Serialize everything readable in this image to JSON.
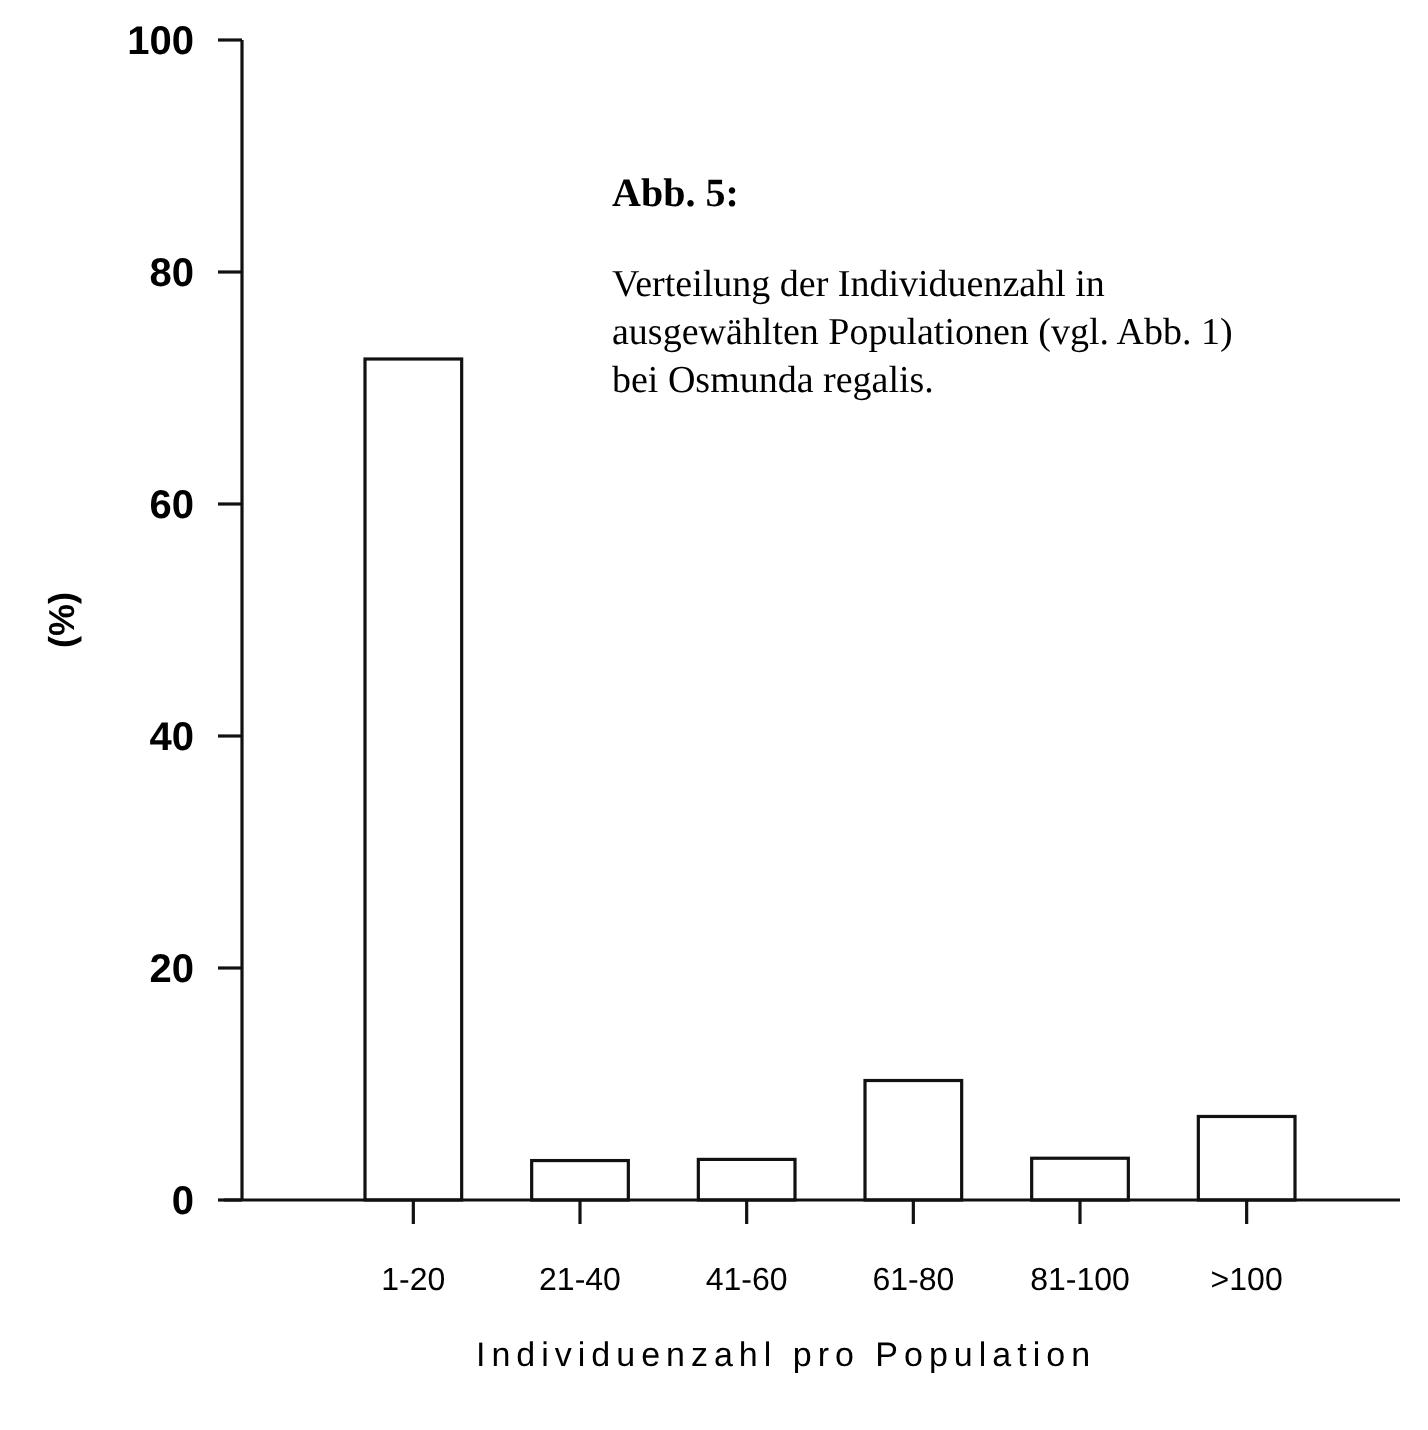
{
  "chart_data": {
    "type": "bar",
    "title": "Abb. 5:",
    "subtitle": "Verteilung der Individuenzahl in ausgewählten Populationen (vgl. Abb. 1) bei Osmunda regalis.",
    "xlabel": "Individuenzahl pro Population",
    "ylabel": "(%)",
    "categories": [
      "1-20",
      "21-40",
      "41-60",
      "61-80",
      "81-100",
      ">100"
    ],
    "values": [
      72.5,
      3.4,
      3.5,
      10.3,
      3.6,
      7.2
    ],
    "color": "#ffffff",
    "ylim": [
      0,
      100
    ],
    "yticks": [
      0,
      20,
      40,
      60,
      80,
      100
    ]
  }
}
